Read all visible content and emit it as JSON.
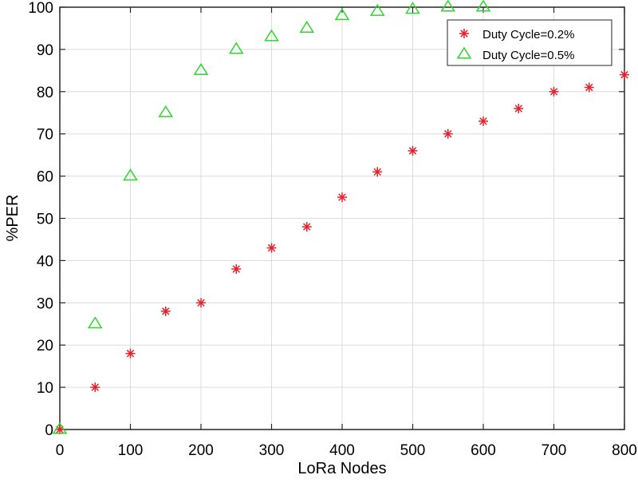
{
  "chart_data": {
    "type": "scatter",
    "title": "",
    "xlabel": "LoRa Nodes",
    "ylabel": "%PER",
    "xlim": [
      0,
      800
    ],
    "ylim": [
      0,
      100
    ],
    "xticks": [
      "0",
      "100",
      "200",
      "300",
      "400",
      "500",
      "600",
      "700",
      "800"
    ],
    "yticks": [
      "0",
      "10",
      "20",
      "30",
      "40",
      "50",
      "60",
      "70",
      "80",
      "90",
      "100"
    ],
    "grid": true,
    "legend_position": "top-right",
    "series": [
      {
        "name": "Duty Cycle=0.2%",
        "marker": "asterisk",
        "color": "#e8202a",
        "x": [
          0,
          50,
          100,
          150,
          200,
          250,
          300,
          350,
          400,
          450,
          500,
          550,
          600,
          650,
          700,
          750,
          800
        ],
        "y": [
          0,
          10,
          18,
          28,
          30,
          38,
          43,
          48,
          55,
          61,
          66,
          70,
          73,
          76,
          80,
          81,
          84
        ]
      },
      {
        "name": "Duty Cycle=0.5%",
        "marker": "triangle",
        "color": "#2ed62e",
        "x": [
          0,
          50,
          100,
          150,
          200,
          250,
          300,
          350,
          400,
          450,
          500,
          550,
          600
        ],
        "y": [
          0,
          25,
          60,
          75,
          85,
          90,
          93,
          95,
          98,
          99,
          99.5,
          100,
          100
        ]
      }
    ]
  }
}
